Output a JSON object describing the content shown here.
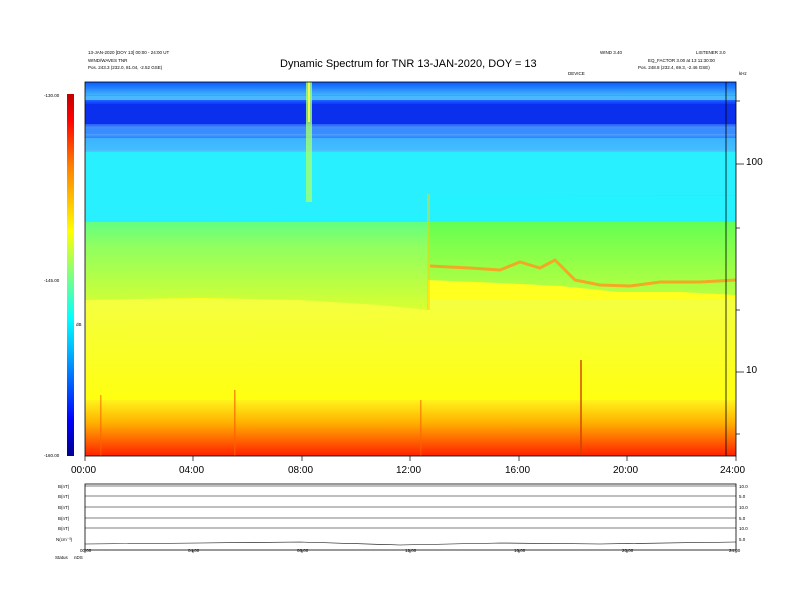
{
  "header": {
    "title": "Dynamic Spectrum for TNR 13-JAN-2020, DOY = 13",
    "info_left_1": "13-JAN-2020 [DOY 13] 00:00 - 24:00 UT",
    "info_left_2": "WIND/WAVES TNR",
    "info_left_3": "Pos.  243.3 (232.0, 81.04, -2.52 GSE)",
    "info_right_1": "WIND 3.40",
    "info_right_2": "LISTENER 3.0",
    "info_right_3": "EQ_FACTOR 3.00 at 13 11:30:00",
    "info_right_4": "Pos.  248.8 (232.4, 69.3, -2.46 GSE)",
    "marker_top": "DEVICE",
    "marker_corner": "kHz"
  },
  "colorbar": {
    "top_label": "-130.00",
    "mid_label": "-145.00",
    "bottom_label": "-160.00",
    "unit": "dB",
    "colors": [
      "#00008f",
      "#0000ff",
      "#00bfff",
      "#00ffff",
      "#80ff80",
      "#ffff00",
      "#ff8000",
      "#ff0000",
      "#800000"
    ]
  },
  "chart_data": {
    "type": "heatmap",
    "title": "Dynamic Spectrum for TNR 13-JAN-2020, DOY = 13",
    "x_tick_labels": [
      "00:00",
      "04:00",
      "08:00",
      "12:00",
      "16:00",
      "20:00",
      "24:00"
    ],
    "x_range_hours": [
      0,
      24
    ],
    "y_axis_scale": "log",
    "y_tick_labels": [
      "100",
      "10"
    ],
    "y_range_khz": [
      4,
      256
    ],
    "color_range_db": [
      -160,
      -130
    ],
    "bands": [
      {
        "freq_khz": [
          180,
          256
        ],
        "color": "#0044ff"
      },
      {
        "freq_khz": [
          120,
          180
        ],
        "color": "#1a7aff"
      },
      {
        "freq_khz": [
          60,
          120
        ],
        "color": "#20f0ff"
      },
      {
        "freq_khz": [
          25,
          60
        ],
        "color": "#8cff5a"
      },
      {
        "freq_khz": [
          6,
          25
        ],
        "color": "#ffff20"
      },
      {
        "freq_khz": [
          4,
          6
        ],
        "color": "#ff3a00"
      }
    ],
    "features": [
      {
        "time_hours": 8.3,
        "note": "vertical streak"
      },
      {
        "time_hours": 12.6,
        "note": "step increase at 12:35 UT"
      },
      {
        "time_hours": 18.2,
        "note": "vertical streak"
      }
    ]
  },
  "lower_panel": {
    "row_labels": [
      "B(nT)",
      "B(nT)",
      "B(nT)",
      "B(nT)",
      "B(nT)",
      "N(cm⁻³)"
    ],
    "right_values": [
      "10.0",
      "5.0",
      "10.0",
      "5.0",
      "10.0",
      "5.0"
    ],
    "x_tick_labels": [
      "00:00",
      "04:00",
      "08:00",
      "12:00",
      "16:00",
      "20:00",
      "24:00"
    ],
    "bottom_label": "Status",
    "bottom_value": "nDS"
  }
}
